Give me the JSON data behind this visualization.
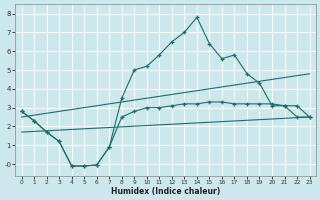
{
  "xlabel": "Humidex (Indice chaleur)",
  "background_color": "#cce8ec",
  "grid_color": "#b0d8dc",
  "line_color": "#1e6b6b",
  "xlim": [
    -0.5,
    23.5
  ],
  "ylim": [
    -0.65,
    8.5
  ],
  "x_ticks": [
    0,
    1,
    2,
    3,
    4,
    5,
    6,
    7,
    8,
    9,
    10,
    11,
    12,
    13,
    14,
    15,
    16,
    17,
    18,
    19,
    20,
    21,
    22,
    23
  ],
  "y_ticks": [
    0,
    1,
    2,
    3,
    4,
    5,
    6,
    7,
    8
  ],
  "curve1_x": [
    0,
    1,
    2,
    3,
    4,
    5,
    6,
    7,
    8,
    9,
    10,
    11,
    12,
    13,
    14,
    15,
    16,
    17,
    18,
    19,
    20,
    21,
    22,
    23
  ],
  "curve1_y": [
    2.8,
    2.3,
    1.7,
    1.2,
    -0.1,
    -0.1,
    -0.05,
    0.9,
    3.5,
    5.0,
    5.2,
    5.8,
    6.5,
    7.0,
    7.8,
    6.4,
    5.6,
    5.8,
    4.8,
    4.3,
    3.1,
    3.1,
    2.5,
    2.5
  ],
  "curve2_x": [
    0,
    1,
    2,
    3,
    4,
    5,
    6,
    7,
    8,
    9,
    10,
    11,
    12,
    13,
    14,
    15,
    16,
    17,
    18,
    19,
    20,
    21,
    22,
    23
  ],
  "curve2_y": [
    2.8,
    2.3,
    1.7,
    1.2,
    -0.1,
    -0.1,
    -0.05,
    0.9,
    2.5,
    2.8,
    3.0,
    3.0,
    3.1,
    3.2,
    3.2,
    3.3,
    3.3,
    3.2,
    3.2,
    3.2,
    3.2,
    3.1,
    3.1,
    2.5
  ],
  "line3_x": [
    0,
    23
  ],
  "line3_y": [
    2.5,
    4.8
  ],
  "line4_x": [
    0,
    23
  ],
  "line4_y": [
    1.7,
    2.5
  ]
}
